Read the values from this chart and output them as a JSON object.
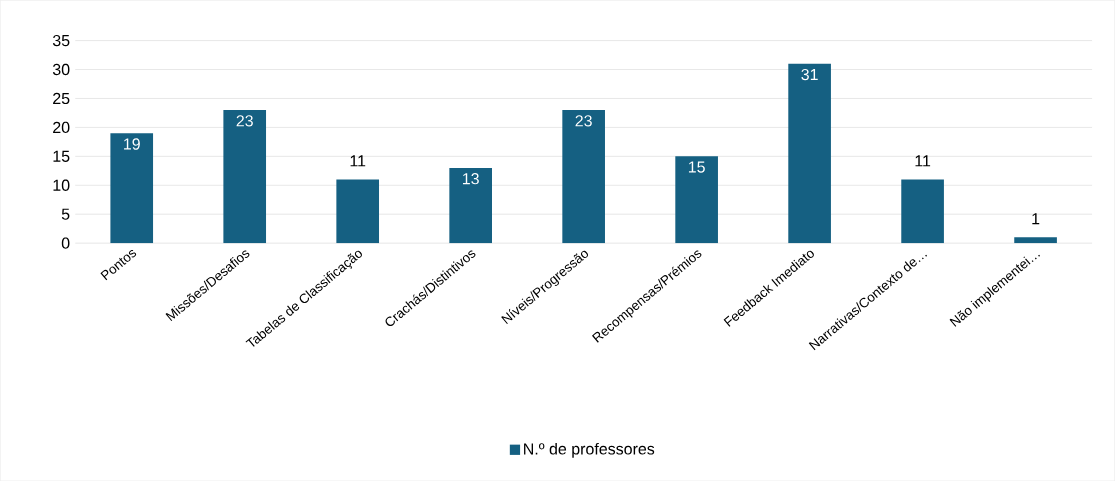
{
  "chart_data": {
    "type": "bar",
    "categories": [
      "Pontos",
      "Missões/Desafios",
      "Tabelas de Classificação",
      "Crachás/Distintivos",
      "Níveis/Progressão",
      "Recompensas/Prémios",
      "Feedback Imediato",
      "Narrativas/Contexto de…",
      "Não implementei…"
    ],
    "series": [
      {
        "name": "N.º de professores",
        "color": "#156082",
        "values": [
          19,
          23,
          11,
          13,
          23,
          15,
          31,
          11,
          1
        ]
      }
    ],
    "ylim": [
      0,
      35
    ],
    "yticks": [
      0,
      5,
      10,
      15,
      20,
      25,
      30,
      35
    ],
    "grid": "y",
    "legend": "bottom",
    "data_labels": true
  }
}
